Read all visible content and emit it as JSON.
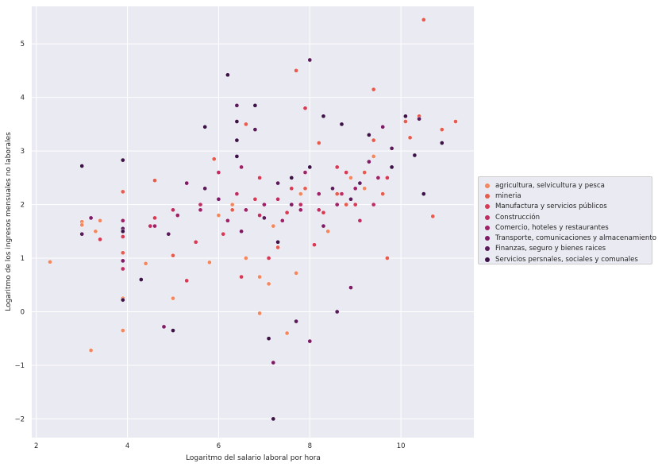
{
  "chart_data": {
    "type": "scatter",
    "title": "",
    "xlabel": "Logaritmo del salario laboral por hora",
    "ylabel": "Logaritmo de los ingresos mensuales no laborales",
    "xlim": [
      1.9,
      11.6
    ],
    "ylim": [
      -2.35,
      5.7
    ],
    "x_ticks": [
      2,
      4,
      6,
      8,
      10
    ],
    "y_ticks": [
      -2,
      -1,
      0,
      1,
      2,
      3,
      4,
      5
    ],
    "grid": true,
    "background": "#eaeaf2",
    "legend_position": "center-right, outside plot",
    "series": [
      {
        "name": "agricultura, selvicultura y pesca",
        "color": "#f4875f",
        "points": [
          [
            2.3,
            0.93
          ],
          [
            3.0,
            1.68
          ],
          [
            3.0,
            1.62
          ],
          [
            3.2,
            -0.72
          ],
          [
            3.3,
            1.5
          ],
          [
            3.4,
            1.7
          ],
          [
            3.9,
            -0.35
          ],
          [
            3.9,
            0.25
          ],
          [
            4.4,
            0.9
          ],
          [
            5.0,
            0.25
          ],
          [
            5.8,
            0.92
          ],
          [
            6.6,
            1.0
          ],
          [
            6.9,
            -0.03
          ],
          [
            6.9,
            0.65
          ],
          [
            7.1,
            0.52
          ],
          [
            7.5,
            -0.4
          ],
          [
            7.7,
            0.72
          ],
          [
            6.0,
            1.8
          ],
          [
            6.3,
            2.0
          ],
          [
            7.2,
            1.6
          ],
          [
            7.8,
            2.2
          ],
          [
            8.4,
            1.5
          ],
          [
            8.9,
            2.5
          ],
          [
            9.2,
            2.3
          ],
          [
            9.4,
            2.9
          ]
        ]
      },
      {
        "name": "mineria",
        "color": "#e85c4f",
        "points": [
          [
            3.9,
            2.24
          ],
          [
            3.9,
            1.1
          ],
          [
            4.6,
            2.45
          ],
          [
            5.0,
            1.05
          ],
          [
            5.9,
            2.85
          ],
          [
            6.6,
            3.5
          ],
          [
            7.3,
            1.2
          ],
          [
            7.7,
            4.5
          ],
          [
            8.2,
            3.15
          ],
          [
            8.6,
            2.2
          ],
          [
            9.2,
            2.6
          ],
          [
            9.4,
            4.15
          ],
          [
            9.4,
            3.2
          ],
          [
            9.7,
            1.0
          ],
          [
            10.1,
            3.55
          ],
          [
            10.2,
            3.25
          ],
          [
            10.4,
            3.65
          ],
          [
            10.5,
            5.45
          ],
          [
            10.7,
            1.78
          ],
          [
            10.9,
            3.4
          ],
          [
            11.2,
            3.55
          ],
          [
            6.3,
            1.9
          ],
          [
            7.9,
            2.3
          ],
          [
            8.8,
            2.0
          ],
          [
            9.6,
            2.2
          ]
        ]
      },
      {
        "name": "Manufactura y servicios públicos",
        "color": "#d83a56",
        "points": [
          [
            3.4,
            1.35
          ],
          [
            3.9,
            1.4
          ],
          [
            4.6,
            1.75
          ],
          [
            5.3,
            0.58
          ],
          [
            5.5,
            1.3
          ],
          [
            6.1,
            1.45
          ],
          [
            6.5,
            0.65
          ],
          [
            6.8,
            2.1
          ],
          [
            7.1,
            1.0
          ],
          [
            7.5,
            1.85
          ],
          [
            7.9,
            3.8
          ],
          [
            8.1,
            1.25
          ],
          [
            8.3,
            1.85
          ],
          [
            8.8,
            2.6
          ],
          [
            9.0,
            2.0
          ],
          [
            9.7,
            2.5
          ],
          [
            6.9,
            2.5
          ],
          [
            7.6,
            2.3
          ],
          [
            8.6,
            2.7
          ]
        ]
      },
      {
        "name": "Construcción",
        "color": "#bf2d63",
        "points": [
          [
            3.9,
            0.8
          ],
          [
            4.5,
            1.6
          ],
          [
            5.0,
            1.9
          ],
          [
            5.6,
            2.0
          ],
          [
            6.0,
            2.6
          ],
          [
            6.4,
            2.2
          ],
          [
            6.9,
            1.8
          ],
          [
            7.3,
            2.1
          ],
          [
            7.8,
            2.0
          ],
          [
            8.2,
            1.9
          ],
          [
            8.7,
            2.2
          ],
          [
            9.1,
            1.7
          ],
          [
            9.4,
            2.0
          ]
        ]
      },
      {
        "name": "Comercio, hoteles y restaurantes",
        "color": "#9f2168",
        "points": [
          [
            3.9,
            1.7
          ],
          [
            4.6,
            1.6
          ],
          [
            5.1,
            1.8
          ],
          [
            5.6,
            1.9
          ],
          [
            6.2,
            1.7
          ],
          [
            6.6,
            1.9
          ],
          [
            7.0,
            2.0
          ],
          [
            7.4,
            1.7
          ],
          [
            7.8,
            1.9
          ],
          [
            8.2,
            2.2
          ],
          [
            8.6,
            2.0
          ],
          [
            9.0,
            2.3
          ],
          [
            9.5,
            2.5
          ],
          [
            6.5,
            2.7
          ],
          [
            7.9,
            2.6
          ]
        ]
      },
      {
        "name": "Transporte, comunicaciones y almacenamiento",
        "color": "#7e1a66",
        "points": [
          [
            3.2,
            1.75
          ],
          [
            3.9,
            0.95
          ],
          [
            4.8,
            -0.28
          ],
          [
            5.3,
            2.4
          ],
          [
            6.0,
            2.1
          ],
          [
            6.5,
            1.5
          ],
          [
            7.2,
            -0.95
          ],
          [
            7.6,
            2.0
          ],
          [
            8.0,
            -0.55
          ],
          [
            8.3,
            1.6
          ],
          [
            8.9,
            0.45
          ],
          [
            9.3,
            2.8
          ],
          [
            9.6,
            3.45
          ]
        ]
      },
      {
        "name": "Finanzas, seguro y bienes raices",
        "color": "#5b1a5a",
        "points": [
          [
            3.0,
            1.45
          ],
          [
            3.9,
            1.55
          ],
          [
            4.9,
            1.45
          ],
          [
            5.7,
            2.3
          ],
          [
            6.4,
            3.85
          ],
          [
            7.0,
            1.75
          ],
          [
            7.7,
            -0.18
          ],
          [
            8.0,
            4.7
          ],
          [
            8.6,
            0.0
          ],
          [
            8.5,
            2.3
          ],
          [
            9.1,
            2.4
          ],
          [
            9.8,
            3.05
          ],
          [
            10.4,
            3.6
          ],
          [
            7.3,
            2.4
          ],
          [
            8.9,
            2.1
          ],
          [
            6.8,
            3.4
          ]
        ]
      },
      {
        "name": "Servicios persnales, sociales y comunales",
        "color": "#3d1347",
        "points": [
          [
            3.0,
            2.72
          ],
          [
            3.9,
            2.83
          ],
          [
            3.9,
            1.5
          ],
          [
            3.9,
            0.22
          ],
          [
            4.3,
            0.6
          ],
          [
            5.0,
            -0.35
          ],
          [
            5.7,
            3.45
          ],
          [
            6.2,
            4.42
          ],
          [
            6.4,
            2.9
          ],
          [
            6.4,
            3.2
          ],
          [
            6.4,
            3.55
          ],
          [
            6.8,
            3.85
          ],
          [
            7.1,
            -0.5
          ],
          [
            7.2,
            -2.0
          ],
          [
            7.3,
            1.3
          ],
          [
            7.6,
            2.5
          ],
          [
            8.0,
            2.7
          ],
          [
            8.3,
            3.65
          ],
          [
            8.7,
            3.5
          ],
          [
            9.3,
            3.3
          ],
          [
            9.8,
            2.7
          ],
          [
            10.1,
            3.65
          ],
          [
            10.3,
            2.92
          ],
          [
            10.5,
            2.2
          ],
          [
            10.9,
            3.15
          ]
        ]
      }
    ]
  }
}
